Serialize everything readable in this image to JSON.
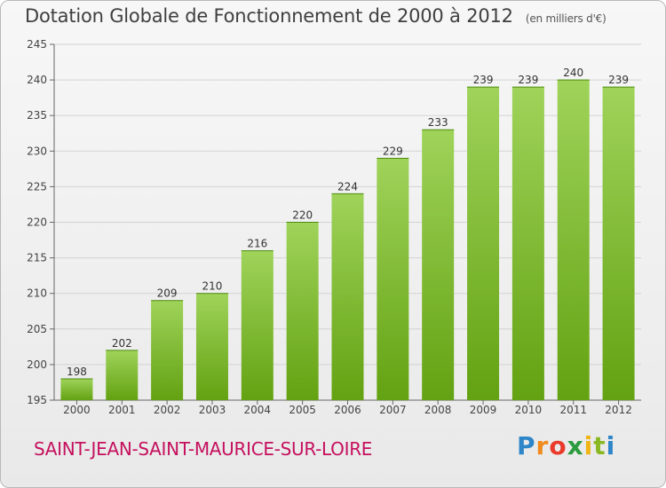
{
  "title": "Dotation Globale de Fonctionnement de 2000 à 2012",
  "unit_note": "(en milliers d'€)",
  "commune": "SAINT-JEAN-SAINT-MAURICE-SUR-LOIRE",
  "logo": {
    "text": "Proxiti",
    "letters": [
      "P",
      "r",
      "o",
      "x",
      "i",
      "t",
      "i"
    ]
  },
  "colors": {
    "bar_top": "#9fd35a",
    "bar_bottom": "#63a212",
    "commune": "#c5115e"
  },
  "chart_data": {
    "type": "bar",
    "categories": [
      "2000",
      "2001",
      "2002",
      "2003",
      "2004",
      "2005",
      "2006",
      "2007",
      "2008",
      "2009",
      "2010",
      "2011",
      "2012"
    ],
    "values": [
      198,
      202,
      209,
      210,
      216,
      220,
      224,
      229,
      233,
      239,
      239,
      240,
      239
    ],
    "yticks": [
      195,
      200,
      205,
      210,
      215,
      220,
      225,
      230,
      235,
      240,
      245
    ],
    "ylim": [
      195,
      245
    ],
    "grid": true
  }
}
